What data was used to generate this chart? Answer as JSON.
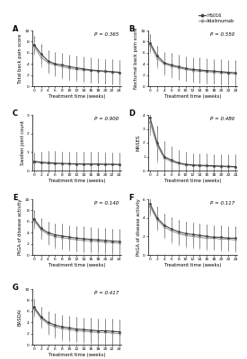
{
  "timepoints": [
    0,
    2,
    4,
    6,
    8,
    10,
    12,
    14,
    16,
    18,
    20,
    22,
    24
  ],
  "panels": [
    {
      "label": "A",
      "ylabel": "Total back pain score",
      "p_value": "P = 0.365",
      "ylim": [
        0,
        10
      ],
      "yticks": [
        0,
        2,
        4,
        6,
        8,
        10
      ],
      "hs016_mean": [
        7.5,
        5.8,
        4.5,
        4.0,
        3.8,
        3.5,
        3.3,
        3.1,
        2.9,
        2.8,
        2.7,
        2.6,
        2.5
      ],
      "hs016_err": [
        1.5,
        1.8,
        2.0,
        2.1,
        2.2,
        2.2,
        2.2,
        2.2,
        2.2,
        2.2,
        2.2,
        2.2,
        2.2
      ],
      "adali_mean": [
        7.2,
        5.2,
        4.2,
        3.8,
        3.5,
        3.2,
        3.0,
        2.9,
        2.8,
        2.7,
        2.6,
        2.5,
        2.4
      ],
      "adali_err": [
        1.5,
        1.8,
        2.0,
        2.1,
        2.2,
        2.2,
        2.2,
        2.2,
        2.2,
        2.2,
        2.2,
        2.2,
        2.2
      ]
    },
    {
      "label": "B",
      "ylabel": "Nocturnal back pain score",
      "p_value": "P = 0.550",
      "ylim": [
        0,
        10
      ],
      "yticks": [
        0,
        2,
        4,
        6,
        8,
        10
      ],
      "hs016_mean": [
        7.8,
        5.5,
        4.2,
        3.8,
        3.5,
        3.2,
        3.0,
        2.9,
        2.8,
        2.7,
        2.6,
        2.5,
        2.4
      ],
      "hs016_err": [
        1.5,
        1.8,
        2.0,
        2.1,
        2.2,
        2.2,
        2.2,
        2.2,
        2.2,
        2.2,
        2.2,
        2.2,
        2.2
      ],
      "adali_mean": [
        7.5,
        5.0,
        4.0,
        3.6,
        3.3,
        3.0,
        2.8,
        2.7,
        2.6,
        2.5,
        2.4,
        2.3,
        2.2
      ],
      "adali_err": [
        1.5,
        1.8,
        2.0,
        2.1,
        2.2,
        2.2,
        2.2,
        2.2,
        2.2,
        2.2,
        2.2,
        2.2,
        2.2
      ]
    },
    {
      "label": "C",
      "ylabel": "Swollen joint count",
      "p_value": "P = 0.900",
      "ylim": [
        0,
        3
      ],
      "yticks": [
        0,
        1,
        2,
        3
      ],
      "hs016_mean": [
        0.5,
        0.45,
        0.42,
        0.4,
        0.38,
        0.37,
        0.36,
        0.35,
        0.35,
        0.35,
        0.34,
        0.34,
        0.33
      ],
      "hs016_err": [
        0.45,
        0.55,
        0.65,
        0.65,
        0.65,
        0.65,
        0.65,
        0.65,
        0.65,
        0.65,
        0.65,
        0.65,
        0.65
      ],
      "adali_mean": [
        0.45,
        0.42,
        0.38,
        0.37,
        0.36,
        0.35,
        0.34,
        0.34,
        0.33,
        0.33,
        0.32,
        0.32,
        0.31
      ],
      "adali_err": [
        0.45,
        0.55,
        0.65,
        0.65,
        0.65,
        0.65,
        0.65,
        0.65,
        0.65,
        0.65,
        0.65,
        0.65,
        0.65
      ]
    },
    {
      "label": "D",
      "ylabel": "MASES",
      "p_value": "P = 0.480",
      "ylim": [
        0,
        4
      ],
      "yticks": [
        0,
        1,
        2,
        3,
        4
      ],
      "hs016_mean": [
        3.8,
        2.0,
        1.0,
        0.75,
        0.55,
        0.45,
        0.4,
        0.38,
        0.36,
        0.34,
        0.32,
        0.3,
        0.28
      ],
      "hs016_err": [
        1.0,
        1.2,
        1.1,
        1.0,
        0.95,
        0.9,
        0.85,
        0.85,
        0.85,
        0.85,
        0.85,
        0.85,
        0.85
      ],
      "adali_mean": [
        3.5,
        1.8,
        0.9,
        0.65,
        0.5,
        0.4,
        0.36,
        0.34,
        0.32,
        0.3,
        0.28,
        0.27,
        0.25
      ],
      "adali_err": [
        1.0,
        1.2,
        1.1,
        1.0,
        0.95,
        0.9,
        0.85,
        0.85,
        0.85,
        0.85,
        0.85,
        0.85,
        0.85
      ]
    },
    {
      "label": "E",
      "ylabel": "PtGA of disease activity",
      "p_value": "P = 0.140",
      "ylim": [
        0,
        10
      ],
      "yticks": [
        0,
        2,
        4,
        6,
        8,
        10
      ],
      "hs016_mean": [
        6.5,
        4.8,
        4.0,
        3.6,
        3.4,
        3.2,
        3.0,
        2.9,
        2.8,
        2.7,
        2.6,
        2.5,
        2.4
      ],
      "hs016_err": [
        1.5,
        1.8,
        2.0,
        2.1,
        2.2,
        2.2,
        2.2,
        2.2,
        2.2,
        2.2,
        2.2,
        2.2,
        2.2
      ],
      "adali_mean": [
        6.2,
        4.5,
        3.7,
        3.3,
        3.1,
        2.9,
        2.7,
        2.6,
        2.5,
        2.4,
        2.3,
        2.2,
        2.1
      ],
      "adali_err": [
        1.5,
        1.8,
        2.0,
        2.1,
        2.2,
        2.2,
        2.2,
        2.2,
        2.2,
        2.2,
        2.2,
        2.2,
        2.2
      ]
    },
    {
      "label": "F",
      "ylabel": "PhGA of disease activity",
      "p_value": "P = 0.117",
      "ylim": [
        0,
        6
      ],
      "yticks": [
        0,
        2,
        4,
        6
      ],
      "hs016_mean": [
        5.5,
        4.0,
        3.2,
        2.8,
        2.5,
        2.3,
        2.2,
        2.1,
        2.0,
        1.9,
        1.9,
        1.8,
        1.8
      ],
      "hs016_err": [
        1.0,
        1.2,
        1.3,
        1.3,
        1.3,
        1.3,
        1.3,
        1.3,
        1.3,
        1.3,
        1.3,
        1.3,
        1.3
      ],
      "adali_mean": [
        5.2,
        3.8,
        3.0,
        2.6,
        2.3,
        2.1,
        2.0,
        1.9,
        1.8,
        1.8,
        1.7,
        1.7,
        1.6
      ],
      "adali_err": [
        1.0,
        1.2,
        1.3,
        1.3,
        1.3,
        1.3,
        1.3,
        1.3,
        1.3,
        1.3,
        1.3,
        1.3,
        1.3
      ]
    },
    {
      "label": "G",
      "ylabel": "BASDAI",
      "p_value": "P = 0.417",
      "ylim": [
        0,
        10
      ],
      "yticks": [
        0,
        2,
        4,
        6,
        8,
        10
      ],
      "hs016_mean": [
        6.8,
        5.0,
        4.0,
        3.5,
        3.2,
        3.0,
        2.8,
        2.7,
        2.6,
        2.5,
        2.5,
        2.4,
        2.3
      ],
      "hs016_err": [
        1.5,
        1.8,
        2.0,
        2.1,
        2.2,
        2.2,
        2.2,
        2.2,
        2.2,
        2.2,
        2.2,
        2.2,
        2.2
      ],
      "adali_mean": [
        6.5,
        4.7,
        3.7,
        3.2,
        2.9,
        2.7,
        2.5,
        2.4,
        2.3,
        2.2,
        2.2,
        2.1,
        2.0
      ],
      "adali_err": [
        1.5,
        1.8,
        2.0,
        2.1,
        2.2,
        2.2,
        2.2,
        2.2,
        2.2,
        2.2,
        2.2,
        2.2,
        2.2
      ]
    }
  ],
  "hs016_color": "#444444",
  "adali_color": "#999999",
  "xlabel": "Treatment time (weeks)",
  "legend_labels": [
    "HS016",
    "Adalimumab"
  ],
  "xtick_labels": [
    "0",
    "2",
    "4",
    "6",
    "8",
    "10",
    "12",
    "14",
    "16",
    "18",
    "20",
    "22",
    "24"
  ],
  "fig_width": 2.75,
  "fig_height": 4.0,
  "dpi": 100
}
